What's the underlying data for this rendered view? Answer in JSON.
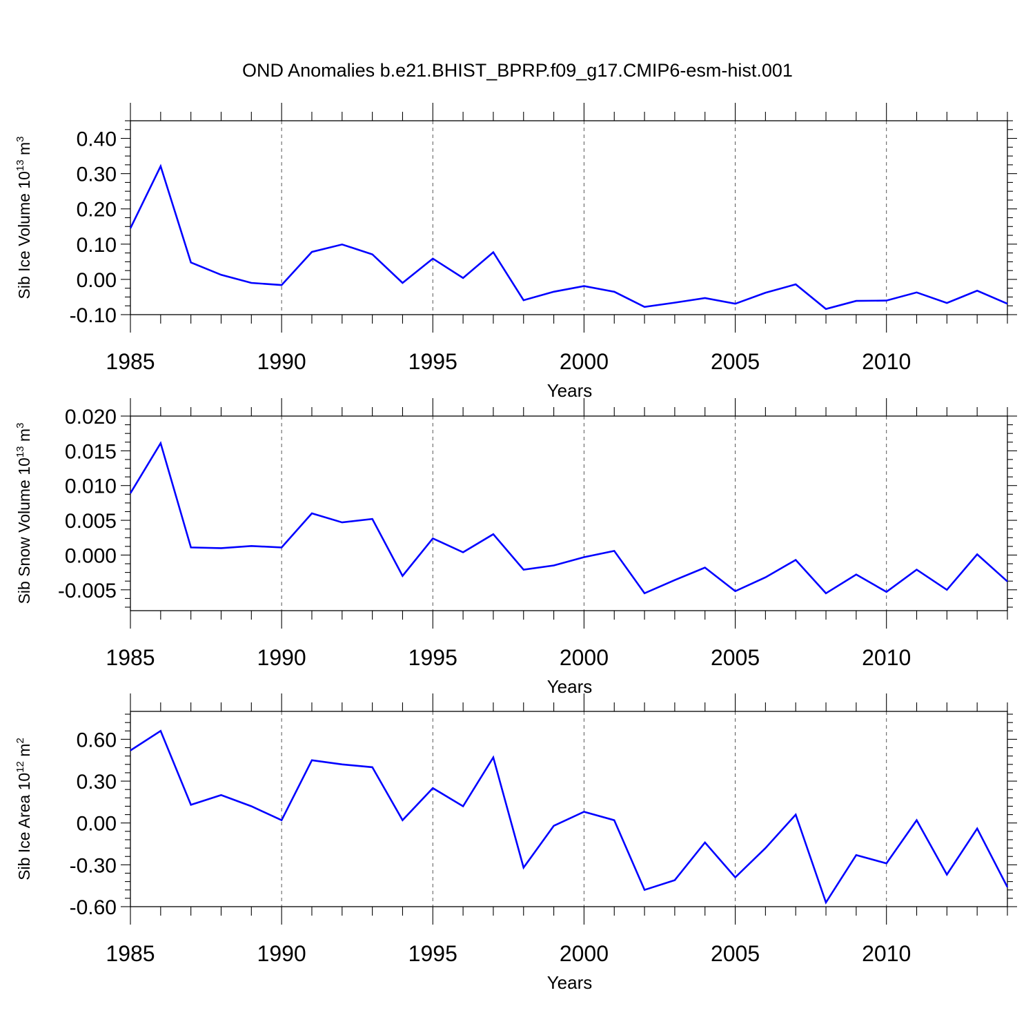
{
  "title": "OND Anomalies b.e21.BHIST_BPRP.f09_g17.CMIP6-esm-hist.001",
  "line_color": "#0000ff",
  "chart_data": [
    {
      "type": "line",
      "xlabel": "Years",
      "ylabel": {
        "text": "Sib Ice Volume 10",
        "sup": "13",
        "mid": " m",
        "sup2": "3"
      },
      "xlim": [
        1985,
        2014
      ],
      "ylim": [
        -0.1,
        0.45
      ],
      "xticks": [
        1985,
        1990,
        1995,
        2000,
        2005,
        2010
      ],
      "xtick_labels": [
        "1985",
        "1990",
        "1995",
        "2000",
        "2005",
        "2010"
      ],
      "yticks": [
        -0.1,
        0.0,
        0.1,
        0.2,
        0.3,
        0.4
      ],
      "ytick_labels": [
        "-0.10",
        "0.00",
        "0.10",
        "0.20",
        "0.30",
        "0.40"
      ],
      "series": [
        {
          "name": "Sib Ice Volume",
          "x": [
            1985,
            1986,
            1987,
            1988,
            1989,
            1990,
            1991,
            1992,
            1993,
            1994,
            1995,
            1996,
            1997,
            1998,
            1999,
            2000,
            2001,
            2002,
            2003,
            2004,
            2005,
            2006,
            2007,
            2008,
            2009,
            2010,
            2011,
            2012,
            2013,
            2014
          ],
          "values": [
            0.145,
            0.321,
            0.048,
            0.013,
            -0.01,
            -0.016,
            0.078,
            0.099,
            0.071,
            -0.01,
            0.059,
            0.004,
            0.077,
            -0.059,
            -0.035,
            -0.019,
            -0.035,
            -0.078,
            -0.066,
            -0.053,
            -0.069,
            -0.038,
            -0.014,
            -0.084,
            -0.061,
            -0.06,
            -0.037,
            -0.067,
            -0.032,
            -0.069
          ]
        }
      ]
    },
    {
      "type": "line",
      "xlabel": "Years",
      "ylabel": {
        "text": "Sib Snow Volume 10",
        "sup": "13",
        "mid": " m",
        "sup2": "3"
      },
      "xlim": [
        1985,
        2014
      ],
      "ylim": [
        -0.008,
        0.02
      ],
      "xticks": [
        1985,
        1990,
        1995,
        2000,
        2005,
        2010
      ],
      "xtick_labels": [
        "1985",
        "1990",
        "1995",
        "2000",
        "2005",
        "2010"
      ],
      "yticks": [
        -0.005,
        0.0,
        0.005,
        0.01,
        0.015,
        0.02
      ],
      "ytick_labels": [
        "-0.005",
        "0.000",
        "0.005",
        "0.010",
        "0.015",
        "0.020"
      ],
      "series": [
        {
          "name": "Sib Snow Volume",
          "x": [
            1985,
            1986,
            1987,
            1988,
            1989,
            1990,
            1991,
            1992,
            1993,
            1994,
            1995,
            1996,
            1997,
            1998,
            1999,
            2000,
            2001,
            2002,
            2003,
            2004,
            2005,
            2006,
            2007,
            2008,
            2009,
            2010,
            2011,
            2012,
            2013,
            2014
          ],
          "values": [
            0.0089,
            0.0161,
            0.0011,
            0.001,
            0.0013,
            0.0011,
            0.006,
            0.0047,
            0.0052,
            -0.003,
            0.0024,
            0.0004,
            0.003,
            -0.0021,
            -0.0015,
            -0.0003,
            0.0006,
            -0.0055,
            -0.0036,
            -0.0018,
            -0.0052,
            -0.0032,
            -0.0007,
            -0.0055,
            -0.0028,
            -0.0053,
            -0.0021,
            -0.005,
            0.0001,
            -0.0038
          ]
        }
      ]
    },
    {
      "type": "line",
      "xlabel": "Years",
      "ylabel": {
        "text": "Sib Ice Area 10",
        "sup": "12",
        "mid": " m",
        "sup2": "2"
      },
      "xlim": [
        1985,
        2014
      ],
      "ylim": [
        -0.6,
        0.8
      ],
      "xticks": [
        1985,
        1990,
        1995,
        2000,
        2005,
        2010
      ],
      "xtick_labels": [
        "1985",
        "1990",
        "1995",
        "2000",
        "2005",
        "2010"
      ],
      "yticks": [
        -0.6,
        -0.3,
        0.0,
        0.3,
        0.6
      ],
      "ytick_labels": [
        "-0.60",
        "-0.30",
        "0.00",
        "0.30",
        "0.60"
      ],
      "series": [
        {
          "name": "Sib Ice Area",
          "x": [
            1985,
            1986,
            1987,
            1988,
            1989,
            1990,
            1991,
            1992,
            1993,
            1994,
            1995,
            1996,
            1997,
            1998,
            1999,
            2000,
            2001,
            2002,
            2003,
            2004,
            2005,
            2006,
            2007,
            2008,
            2009,
            2010,
            2011,
            2012,
            2013,
            2014
          ],
          "values": [
            0.52,
            0.66,
            0.13,
            0.2,
            0.12,
            0.02,
            0.45,
            0.42,
            0.4,
            0.02,
            0.25,
            0.12,
            0.47,
            -0.32,
            -0.02,
            0.08,
            0.02,
            -0.48,
            -0.41,
            -0.14,
            -0.39,
            -0.18,
            0.06,
            -0.57,
            -0.23,
            -0.29,
            0.02,
            -0.37,
            -0.04,
            -0.46
          ]
        }
      ]
    }
  ]
}
